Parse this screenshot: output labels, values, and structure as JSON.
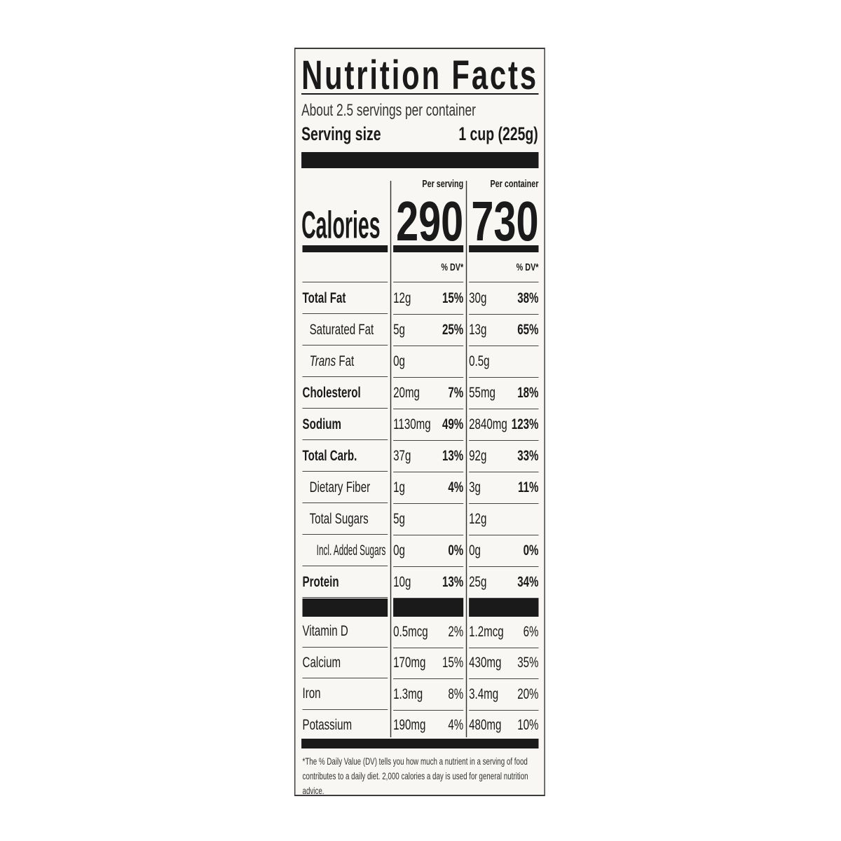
{
  "title": "Nutrition Facts",
  "servings_per_container": "About 2.5 servings per container",
  "serving_size": {
    "label": "Serving size",
    "value": "1 cup (225g)"
  },
  "calories": {
    "label": "Calories",
    "per_serving_header": "Per serving",
    "per_container_header": "Per container",
    "per_serving": "290",
    "per_container": "730"
  },
  "dv_header": "% DV*",
  "nutrients": [
    {
      "label": "Total Fat",
      "bold": true,
      "indent": 0,
      "serving": {
        "amount": "12g",
        "dv": "15%"
      },
      "container": {
        "amount": "30g",
        "dv": "38%"
      }
    },
    {
      "label": "Saturated Fat",
      "bold": false,
      "indent": 1,
      "serving": {
        "amount": "5g",
        "dv": "25%"
      },
      "container": {
        "amount": "13g",
        "dv": "65%"
      }
    },
    {
      "label_italic": "Trans",
      "label": " Fat",
      "bold": false,
      "indent": 1,
      "serving": {
        "amount": "0g",
        "dv": ""
      },
      "container": {
        "amount": "0.5g",
        "dv": ""
      }
    },
    {
      "label": "Cholesterol",
      "bold": true,
      "indent": 0,
      "serving": {
        "amount": "20mg",
        "dv": "7%"
      },
      "container": {
        "amount": "55mg",
        "dv": "18%"
      }
    },
    {
      "label": "Sodium",
      "bold": true,
      "indent": 0,
      "serving": {
        "amount": "1130mg",
        "dv": "49%"
      },
      "container": {
        "amount": "2840mg",
        "dv": "123%"
      }
    },
    {
      "label": "Total Carb.",
      "bold": true,
      "indent": 0,
      "serving": {
        "amount": "37g",
        "dv": "13%"
      },
      "container": {
        "amount": "92g",
        "dv": "33%"
      }
    },
    {
      "label": "Dietary Fiber",
      "bold": false,
      "indent": 1,
      "serving": {
        "amount": "1g",
        "dv": "4%"
      },
      "container": {
        "amount": "3g",
        "dv": "11%"
      }
    },
    {
      "label": "Total Sugars",
      "bold": false,
      "indent": 1,
      "serving": {
        "amount": "5g",
        "dv": ""
      },
      "container": {
        "amount": "12g",
        "dv": ""
      }
    },
    {
      "label": "Incl. Added Sugars",
      "bold": false,
      "indent": 2,
      "serving": {
        "amount": "0g",
        "dv": "0%"
      },
      "container": {
        "amount": "0g",
        "dv": "0%"
      }
    },
    {
      "label": "Protein",
      "bold": true,
      "indent": 0,
      "serving": {
        "amount": "10g",
        "dv": "13%"
      },
      "container": {
        "amount": "25g",
        "dv": "34%"
      }
    }
  ],
  "vitamins": [
    {
      "label": "Vitamin D",
      "serving": {
        "amount": "0.5mcg",
        "dv": "2%"
      },
      "container": {
        "amount": "1.2mcg",
        "dv": "6%"
      }
    },
    {
      "label": "Calcium",
      "serving": {
        "amount": "170mg",
        "dv": "15%"
      },
      "container": {
        "amount": "430mg",
        "dv": "35%"
      }
    },
    {
      "label": "Iron",
      "serving": {
        "amount": "1.3mg",
        "dv": "8%"
      },
      "container": {
        "amount": "3.4mg",
        "dv": "20%"
      }
    },
    {
      "label": "Potassium",
      "serving": {
        "amount": "190mg",
        "dv": "4%"
      },
      "container": {
        "amount": "480mg",
        "dv": "10%"
      }
    }
  ],
  "footnote": "*The % Daily Value (DV) tells you how much a nutrient in a serving of food contributes to a daily diet. 2,000 calories a day is used for general nutrition advice."
}
